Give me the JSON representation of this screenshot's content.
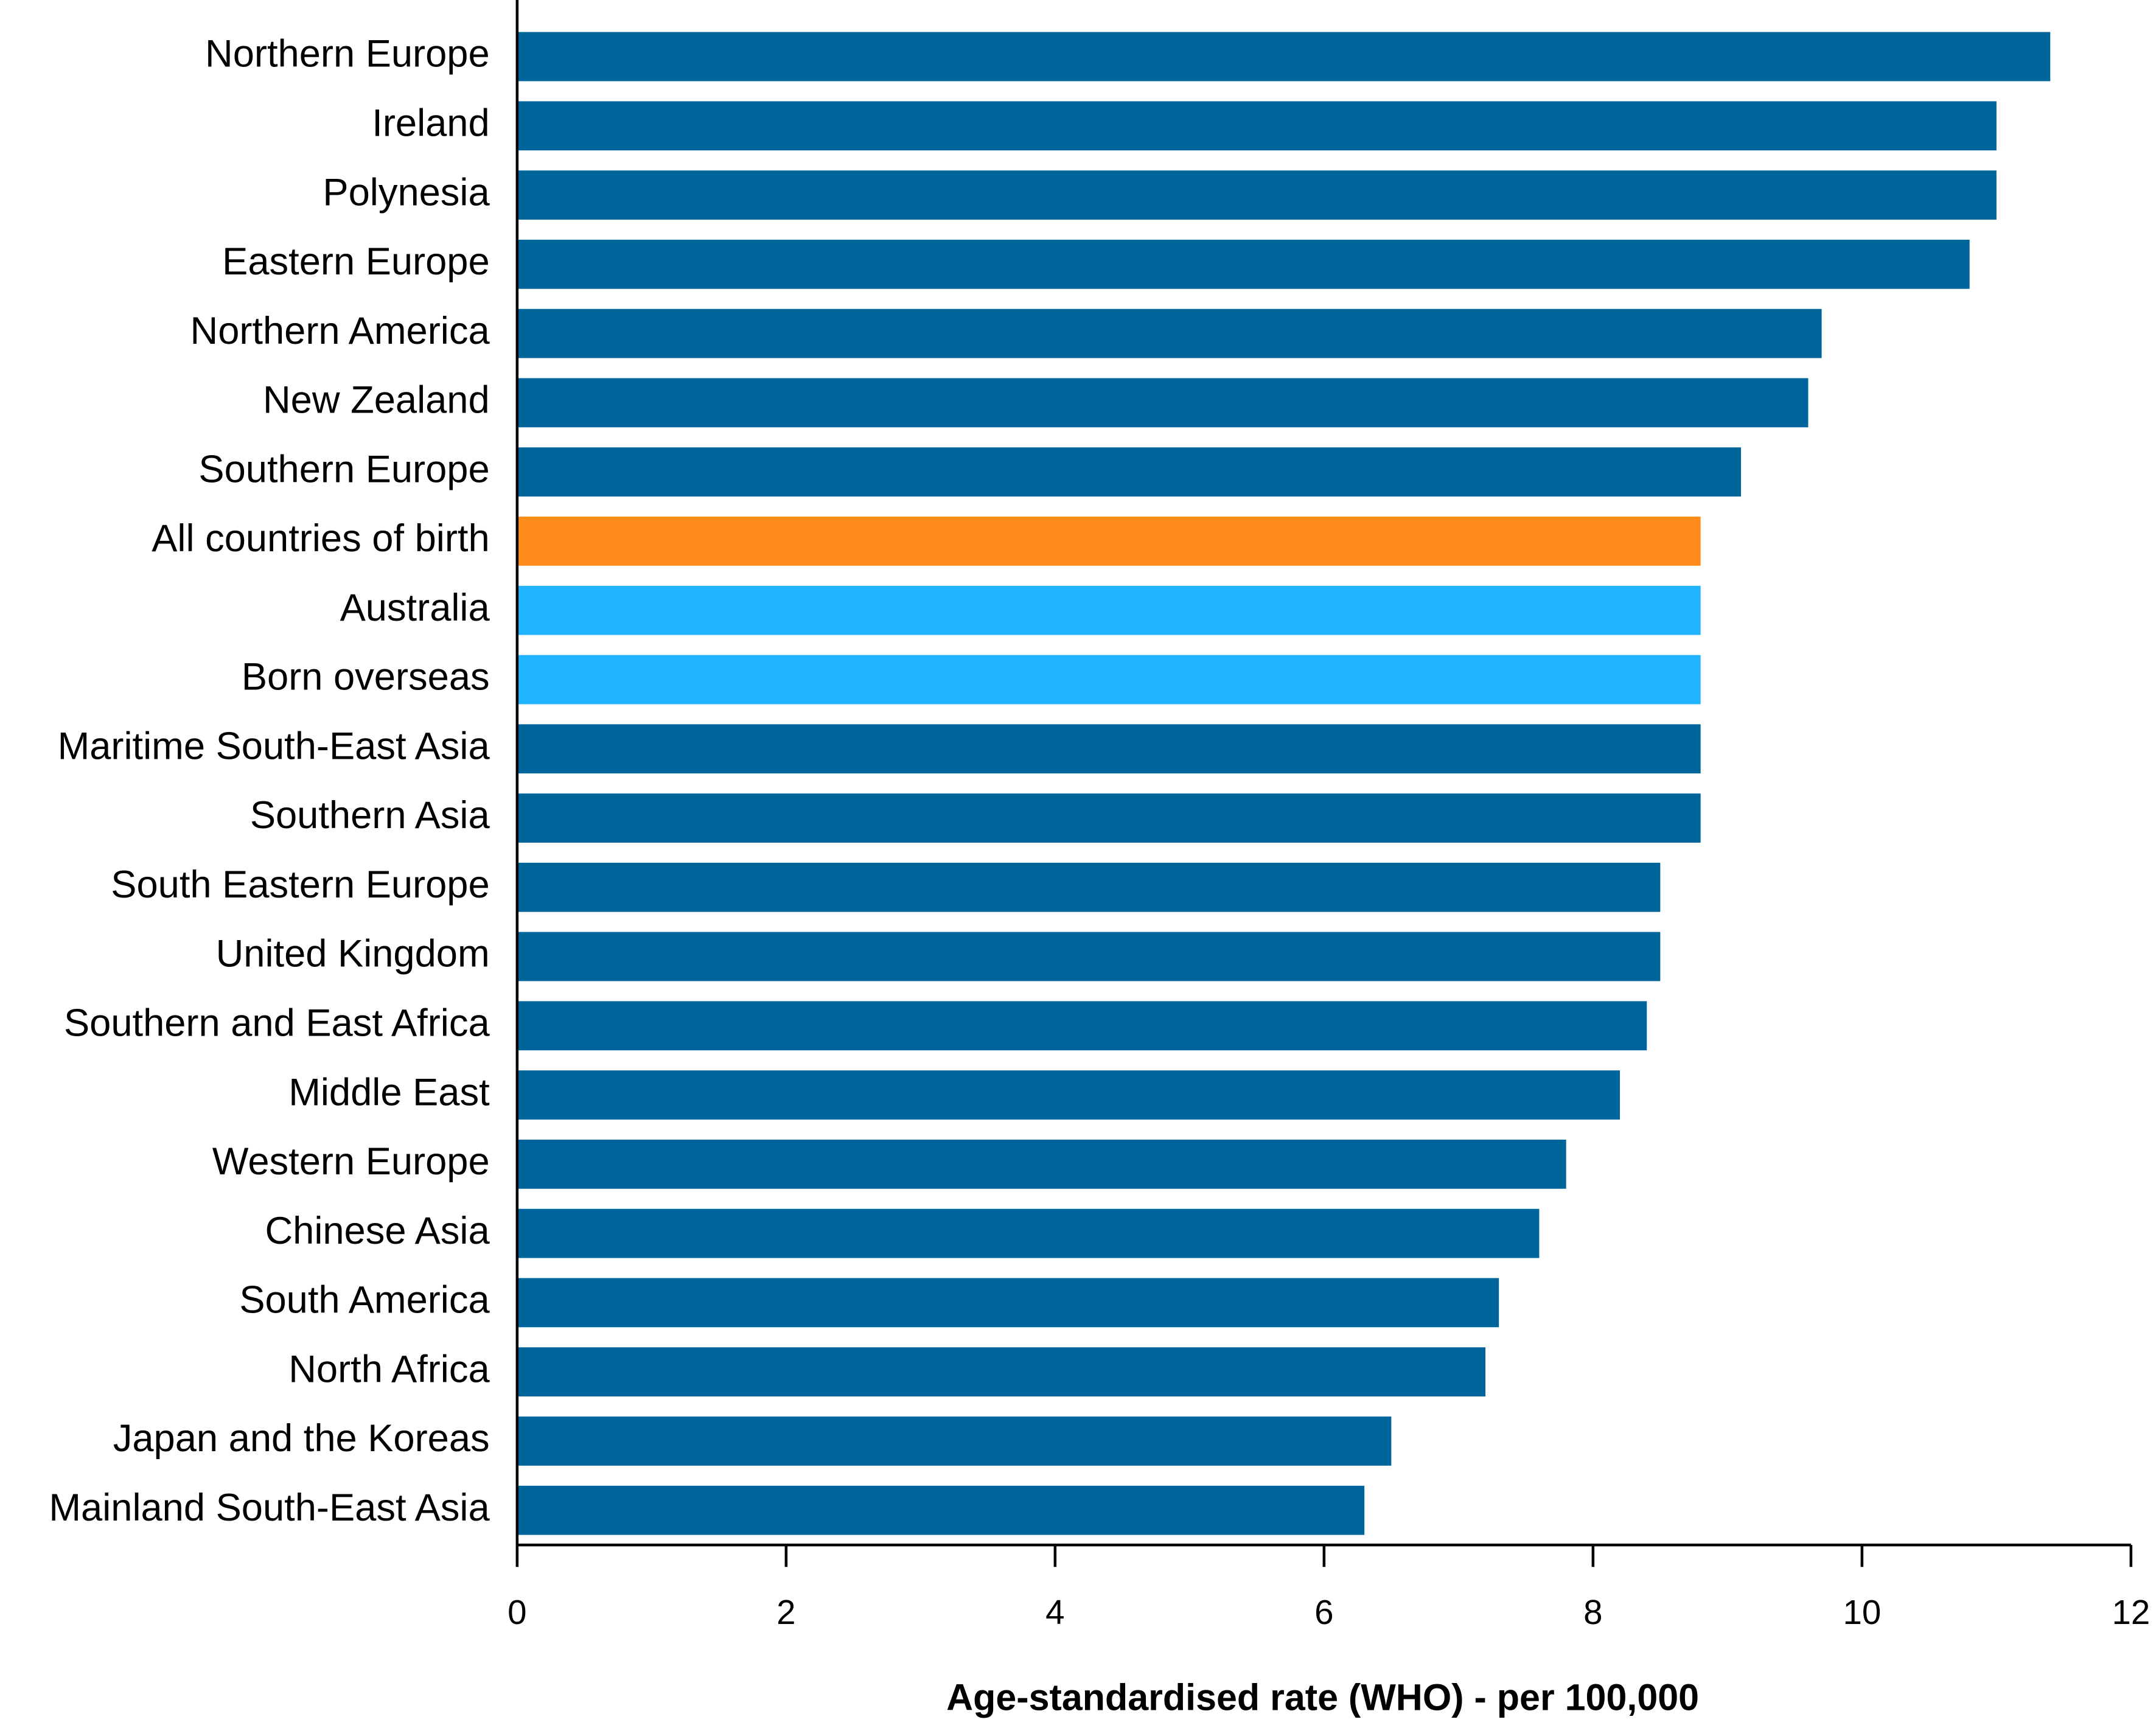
{
  "chart_data": {
    "type": "hbar",
    "xlabel": "Age-standardised rate (WHO) - per 100,000",
    "categories": [
      "Northern Europe",
      "Ireland",
      "Polynesia",
      "Eastern Europe",
      "Northern America",
      "New Zealand",
      "Southern Europe",
      "All countries of birth",
      "Australia",
      "Born overseas",
      "Maritime South-East Asia",
      "Southern Asia",
      "South Eastern Europe",
      "United Kingdom",
      "Southern and East Africa",
      "Middle East",
      "Western Europe",
      "Chinese Asia",
      "South America",
      "North Africa",
      "Japan and the Koreas",
      "Mainland South-East Asia"
    ],
    "values": [
      11.4,
      11.0,
      11.0,
      10.8,
      9.7,
      9.6,
      9.1,
      8.8,
      8.8,
      8.8,
      8.8,
      8.8,
      8.5,
      8.5,
      8.4,
      8.2,
      7.8,
      7.6,
      7.3,
      7.2,
      6.5,
      6.3
    ],
    "colors": [
      "#00659a",
      "#00659a",
      "#00659a",
      "#00659a",
      "#00659a",
      "#00659a",
      "#00659a",
      "#ff8c1a",
      "#22b3ff",
      "#22b3ff",
      "#00659a",
      "#00659a",
      "#00659a",
      "#00659a",
      "#00659a",
      "#00659a",
      "#00659a",
      "#00659a",
      "#00659a",
      "#00659a",
      "#00659a",
      "#00659a"
    ],
    "xlim": [
      0,
      12
    ],
    "xticks": [
      0,
      2,
      4,
      6,
      8,
      10,
      12
    ]
  }
}
